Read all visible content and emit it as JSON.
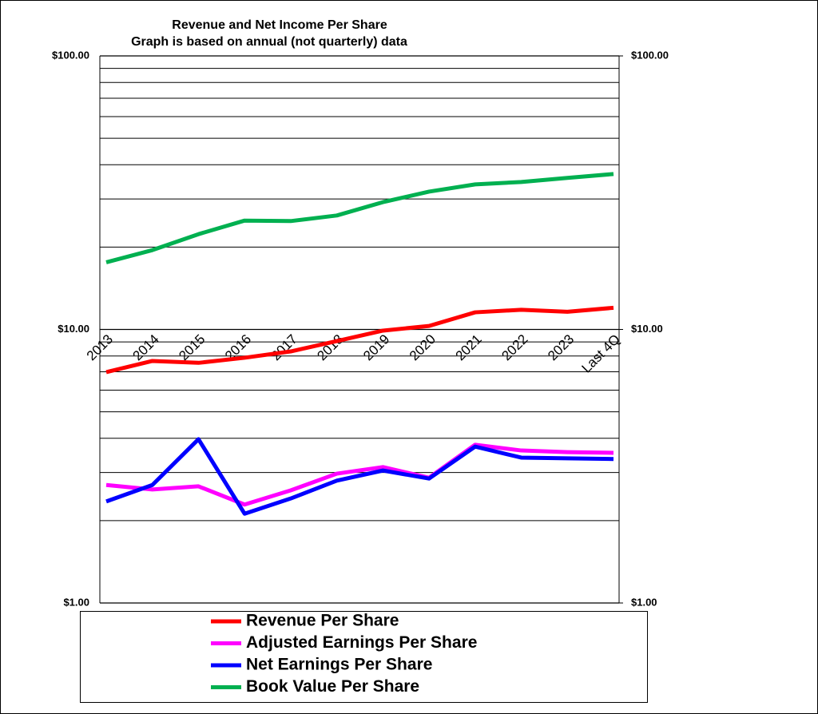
{
  "chart_data": {
    "type": "line",
    "title": "Revenue and Net Income Per Share",
    "subtitle": "Graph is based on annual (not quarterly) data",
    "categories": [
      "2013",
      "2014",
      "2015",
      "2016",
      "2017",
      "2018",
      "2019",
      "2020",
      "2021",
      "2022",
      "2023",
      "Last 4Q"
    ],
    "log_scale": true,
    "minor_grid": true,
    "ylim": [
      1,
      100
    ],
    "yticks": [
      {
        "value": 1,
        "label": "$1.00"
      },
      {
        "value": 10,
        "label": "$10.00"
      },
      {
        "value": 100,
        "label": "$100.00"
      }
    ],
    "y2lim": [
      1,
      100
    ],
    "y2ticks": [
      {
        "value": 1,
        "label": "$1.00"
      },
      {
        "value": 10,
        "label": "$10.00"
      },
      {
        "value": 100,
        "label": "$100.00"
      }
    ],
    "series": [
      {
        "name": "Revenue Per Share",
        "color": "#ff0000",
        "values": [
          6.98,
          7.67,
          7.55,
          7.88,
          8.31,
          9.07,
          9.9,
          10.3,
          11.55,
          11.8,
          11.6,
          12.0
        ]
      },
      {
        "name": "Adjusted Earnings Per Share",
        "color": "#ff00ff",
        "values": [
          2.7,
          2.6,
          2.67,
          2.29,
          2.58,
          2.97,
          3.14,
          2.87,
          3.79,
          3.61,
          3.56,
          3.54
        ]
      },
      {
        "name": "Net Earnings Per Share",
        "color": "#0000ff",
        "values": [
          2.35,
          2.7,
          3.97,
          2.12,
          2.41,
          2.8,
          3.05,
          2.85,
          3.73,
          3.4,
          3.38,
          3.36
        ]
      },
      {
        "name": "Book Value Per Share",
        "color": "#00b050",
        "values": [
          17.6,
          19.5,
          22.3,
          25.0,
          24.9,
          26.1,
          29.2,
          31.9,
          33.9,
          34.6,
          35.8,
          37.0
        ]
      }
    ]
  }
}
